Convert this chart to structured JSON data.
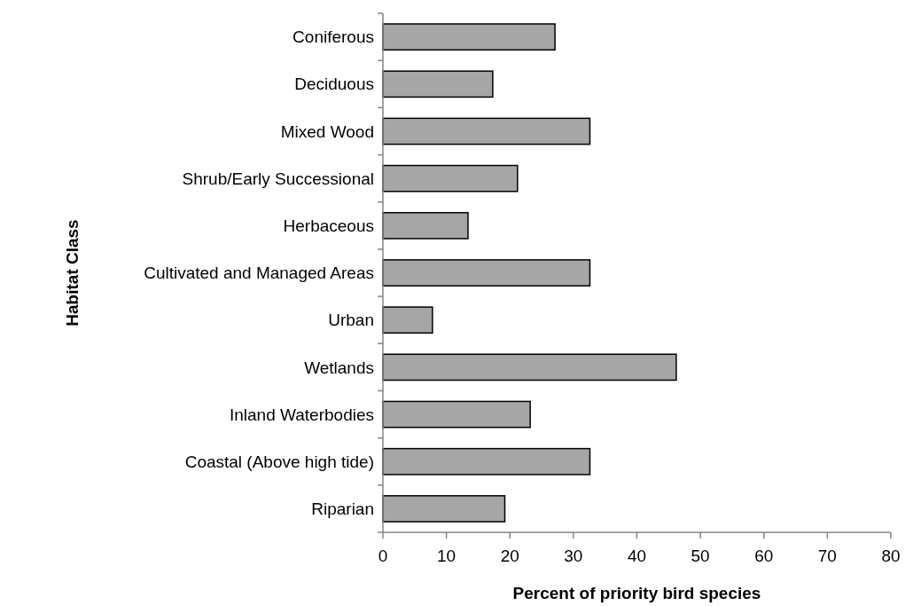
{
  "chart_data": {
    "type": "bar",
    "orientation": "horizontal",
    "xlabel": "Percent of priority bird species",
    "ylabel": "Habitat Class",
    "categories": [
      "Coniferous",
      "Deciduous",
      "Mixed Wood",
      "Shrub/Early Successional",
      "Herbaceous",
      "Cultivated and Managed Areas",
      "Urban",
      "Wetlands",
      "Inland Waterbodies",
      "Coastal (Above high tide)",
      "Riparian"
    ],
    "values": [
      27.1,
      17.3,
      32.6,
      21.2,
      13.4,
      32.6,
      7.8,
      46.2,
      23.2,
      32.6,
      19.2
    ],
    "color": "#a6a6a6",
    "xlim": [
      0,
      80
    ],
    "xticks": [
      0,
      10,
      20,
      30,
      40,
      50,
      60,
      70,
      80
    ],
    "grid": false
  }
}
